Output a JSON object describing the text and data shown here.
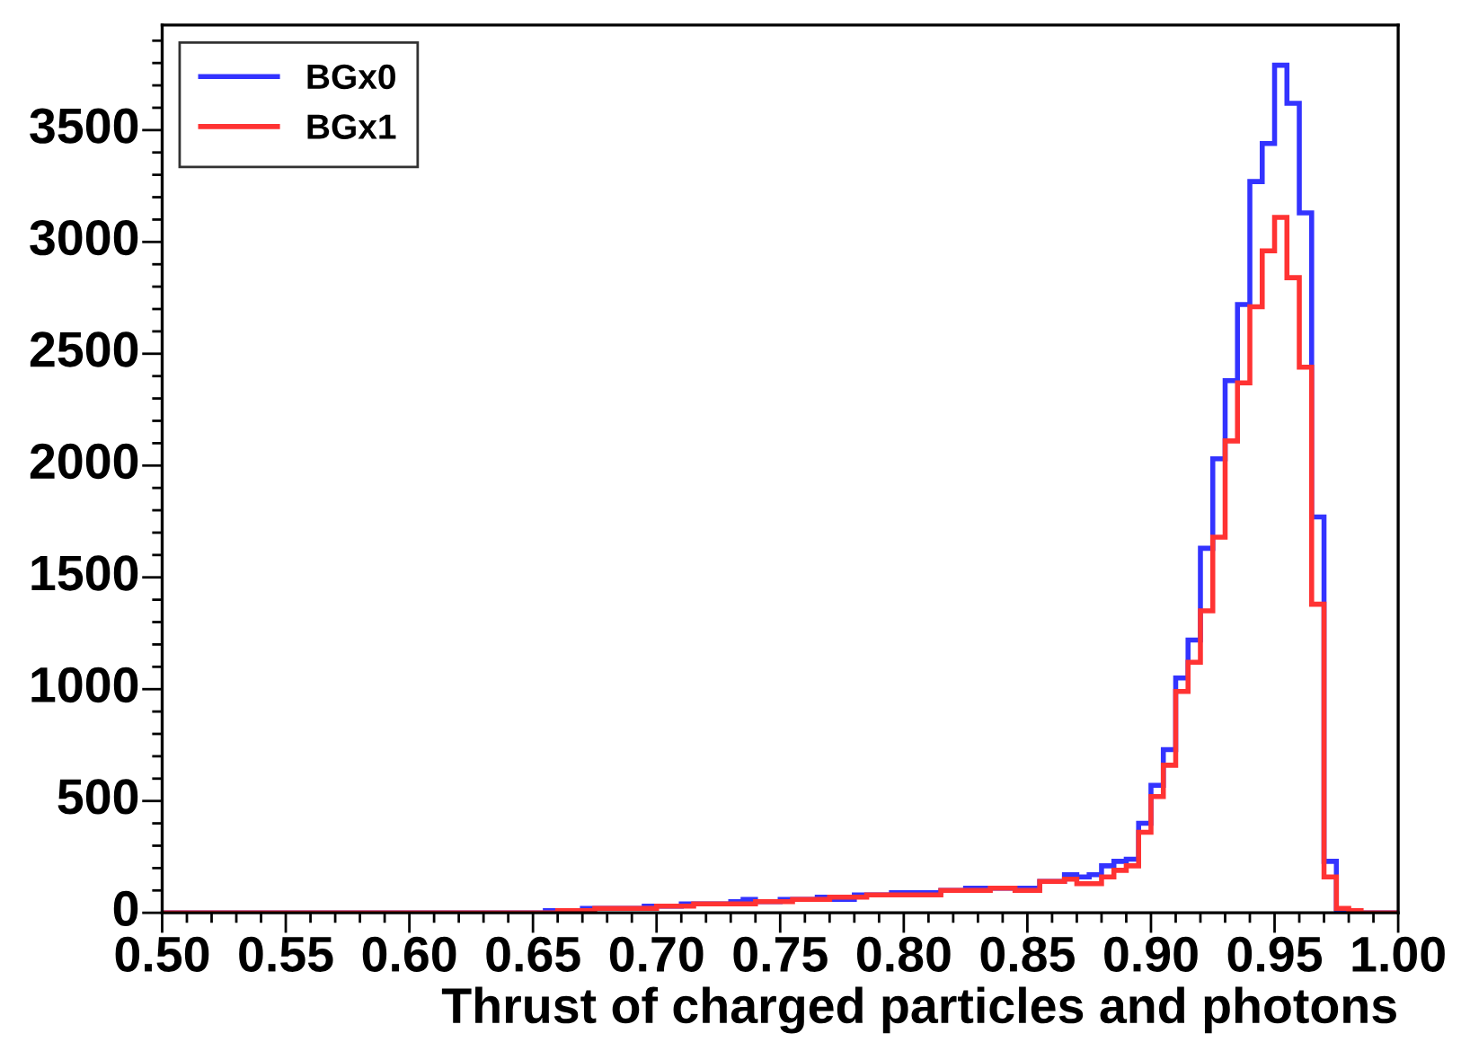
{
  "chart_data": {
    "type": "histogram",
    "xlabel": "Thrust of charged particles and photons",
    "bins": [
      0.5,
      0.505,
      0.51,
      0.515,
      0.52,
      0.525,
      0.53,
      0.535,
      0.54,
      0.545,
      0.55,
      0.555,
      0.56,
      0.565,
      0.57,
      0.575,
      0.58,
      0.585,
      0.59,
      0.595,
      0.6,
      0.605,
      0.61,
      0.615,
      0.62,
      0.625,
      0.63,
      0.635,
      0.64,
      0.645,
      0.65,
      0.655,
      0.66,
      0.665,
      0.67,
      0.675,
      0.68,
      0.685,
      0.69,
      0.695,
      0.7,
      0.705,
      0.71,
      0.715,
      0.72,
      0.725,
      0.73,
      0.735,
      0.74,
      0.745,
      0.75,
      0.755,
      0.76,
      0.765,
      0.77,
      0.775,
      0.78,
      0.785,
      0.79,
      0.795,
      0.8,
      0.805,
      0.81,
      0.815,
      0.82,
      0.825,
      0.83,
      0.835,
      0.84,
      0.845,
      0.85,
      0.855,
      0.86,
      0.865,
      0.87,
      0.875,
      0.88,
      0.885,
      0.89,
      0.895,
      0.9,
      0.905,
      0.91,
      0.915,
      0.92,
      0.925,
      0.93,
      0.935,
      0.94,
      0.945,
      0.95,
      0.955,
      0.96,
      0.965,
      0.97,
      0.975,
      0.98,
      0.985,
      0.99,
      0.995,
      1.0
    ],
    "series": [
      {
        "name": "BGx0",
        "color": "#3333ff",
        "values": [
          0,
          0,
          0,
          0,
          0,
          0,
          0,
          0,
          0,
          0,
          0,
          0,
          0,
          0,
          0,
          0,
          0,
          0,
          0,
          0,
          0,
          0,
          0,
          0,
          0,
          0,
          0,
          0,
          0,
          0,
          0,
          10,
          10,
          10,
          20,
          20,
          20,
          20,
          20,
          30,
          30,
          30,
          40,
          40,
          40,
          40,
          50,
          60,
          50,
          50,
          60,
          60,
          60,
          70,
          60,
          60,
          80,
          80,
          80,
          90,
          90,
          90,
          90,
          100,
          100,
          110,
          110,
          110,
          110,
          110,
          110,
          140,
          140,
          170,
          160,
          170,
          210,
          230,
          240,
          400,
          570,
          730,
          1050,
          1220,
          1630,
          2030,
          2380,
          2720,
          3270,
          3440,
          3790,
          3620,
          3130,
          1770,
          230,
          0,
          0,
          0,
          0,
          0
        ]
      },
      {
        "name": "BGx1",
        "color": "#ff3333",
        "values": [
          0,
          0,
          0,
          0,
          0,
          0,
          0,
          0,
          0,
          0,
          0,
          0,
          0,
          0,
          0,
          0,
          0,
          0,
          0,
          0,
          0,
          0,
          0,
          0,
          0,
          0,
          0,
          0,
          0,
          0,
          0,
          0,
          10,
          10,
          10,
          20,
          20,
          20,
          20,
          20,
          30,
          30,
          30,
          40,
          40,
          40,
          40,
          40,
          50,
          50,
          50,
          60,
          60,
          60,
          70,
          70,
          70,
          80,
          80,
          80,
          80,
          80,
          80,
          100,
          100,
          100,
          100,
          110,
          110,
          100,
          100,
          140,
          140,
          150,
          130,
          130,
          160,
          190,
          210,
          360,
          520,
          660,
          990,
          1120,
          1350,
          1680,
          2110,
          2370,
          2710,
          2960,
          3110,
          2840,
          2440,
          1380,
          160,
          20,
          10,
          0,
          0,
          0
        ]
      }
    ],
    "xlim": [
      0.5,
      1.0
    ],
    "xticks": [
      {
        "value": 0.5,
        "label": "0.50"
      },
      {
        "value": 0.55,
        "label": "0.55"
      },
      {
        "value": 0.6,
        "label": "0.60"
      },
      {
        "value": 0.65,
        "label": "0.65"
      },
      {
        "value": 0.7,
        "label": "0.70"
      },
      {
        "value": 0.75,
        "label": "0.75"
      },
      {
        "value": 0.8,
        "label": "0.80"
      },
      {
        "value": 0.85,
        "label": "0.85"
      },
      {
        "value": 0.9,
        "label": "0.90"
      },
      {
        "value": 0.95,
        "label": "0.95"
      },
      {
        "value": 1.0,
        "label": "1.00"
      }
    ],
    "ylim": [
      0,
      3970
    ],
    "yticks": [
      0,
      500,
      1000,
      1500,
      2000,
      2500,
      3000,
      3500
    ],
    "grid": false,
    "legend": "top left"
  }
}
